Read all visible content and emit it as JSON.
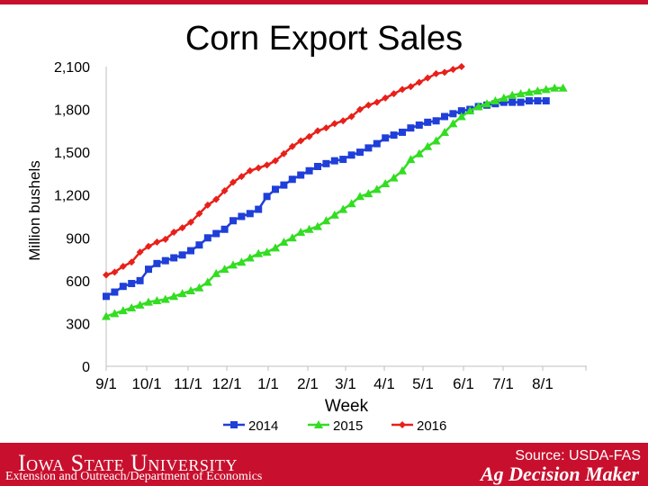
{
  "colors": {
    "brand": "#c8102e",
    "s2014": "#1f3fd8",
    "s2015": "#33dd22",
    "s2016": "#e8201a"
  },
  "footer": {
    "university": "Iowa State University",
    "department": "Extension and Outreach/Department of Economics",
    "source": "Source: USDA-FAS",
    "brand": "Ag Decision Maker"
  },
  "chart_data": {
    "type": "line",
    "title": "Corn Export Sales",
    "xlabel": "Week",
    "ylabel": "Million bushels",
    "ylim": [
      0,
      2100
    ],
    "yticks": [
      "0",
      "300",
      "600",
      "900",
      "1,200",
      "1,500",
      "1,800",
      "2,100"
    ],
    "xticks": [
      "9/1",
      "10/1",
      "11/1",
      "12/1",
      "1/1",
      "2/1",
      "3/1",
      "4/1",
      "5/1",
      "6/1",
      "7/1",
      "8/1"
    ],
    "legend_position": "bottom",
    "grid": false,
    "series": [
      {
        "name": "2014",
        "color": "#1f3fd8",
        "marker": "square",
        "values": [
          490,
          520,
          560,
          580,
          600,
          680,
          720,
          740,
          760,
          780,
          810,
          850,
          900,
          930,
          960,
          1020,
          1050,
          1070,
          1100,
          1190,
          1240,
          1270,
          1310,
          1340,
          1370,
          1400,
          1420,
          1440,
          1450,
          1480,
          1500,
          1530,
          1560,
          1600,
          1620,
          1640,
          1670,
          1690,
          1710,
          1720,
          1750,
          1770,
          1790,
          1800,
          1820,
          1830,
          1840,
          1850,
          1850,
          1850,
          1860,
          1860,
          1860
        ]
      },
      {
        "name": "2015",
        "color": "#33dd22",
        "marker": "triangle",
        "values": [
          350,
          370,
          390,
          410,
          430,
          450,
          460,
          470,
          490,
          510,
          530,
          550,
          590,
          650,
          680,
          710,
          730,
          760,
          790,
          800,
          830,
          870,
          900,
          940,
          960,
          980,
          1020,
          1060,
          1100,
          1140,
          1190,
          1210,
          1240,
          1280,
          1320,
          1370,
          1450,
          1490,
          1540,
          1580,
          1640,
          1700,
          1750,
          1790,
          1820,
          1840,
          1860,
          1880,
          1900,
          1910,
          1920,
          1930,
          1940,
          1950,
          1950
        ]
      },
      {
        "name": "2016",
        "color": "#e8201a",
        "marker": "diamond",
        "values": [
          640,
          660,
          700,
          730,
          800,
          840,
          870,
          890,
          940,
          970,
          1010,
          1070,
          1130,
          1170,
          1230,
          1290,
          1330,
          1370,
          1390,
          1410,
          1440,
          1490,
          1540,
          1580,
          1610,
          1650,
          1670,
          1700,
          1720,
          1750,
          1800,
          1830,
          1850,
          1880,
          1910,
          1940,
          1960,
          1990,
          2020,
          2050,
          2060,
          2080,
          2100
        ]
      }
    ]
  }
}
